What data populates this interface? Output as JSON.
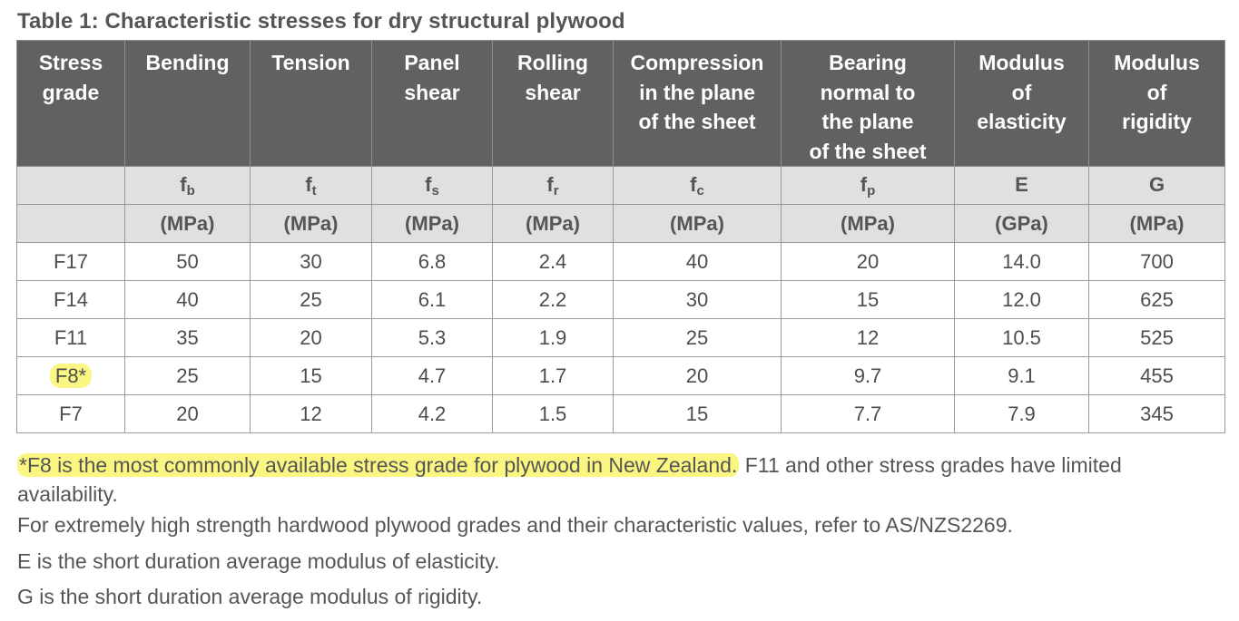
{
  "title": "Table 1: Characteristic stresses for dry structural plywood",
  "columns": [
    {
      "header": [
        "Stress",
        "grade"
      ],
      "symbol": "",
      "sub": "",
      "unit": ""
    },
    {
      "header": [
        "Bending"
      ],
      "symbol": "f",
      "sub": "b",
      "unit": "(MPa)"
    },
    {
      "header": [
        "Tension"
      ],
      "symbol": "f",
      "sub": "t",
      "unit": "(MPa)"
    },
    {
      "header": [
        "Panel",
        "shear"
      ],
      "symbol": "f",
      "sub": "s",
      "unit": "(MPa)"
    },
    {
      "header": [
        "Rolling",
        "shear"
      ],
      "symbol": "f",
      "sub": "r",
      "unit": "(MPa)"
    },
    {
      "header": [
        "Compression",
        "in the plane",
        "of the sheet"
      ],
      "symbol": "f",
      "sub": "c",
      "unit": "(MPa)"
    },
    {
      "header": [
        "Bearing",
        "normal to",
        "the plane",
        "of the sheet"
      ],
      "symbol": "f",
      "sub": "p",
      "unit": "(MPa)"
    },
    {
      "header": [
        "Modulus",
        "of",
        "elasticity"
      ],
      "symbol": "E",
      "sub": "",
      "unit": "(GPa)"
    },
    {
      "header": [
        "Modulus",
        "of",
        "rigidity"
      ],
      "symbol": "G",
      "sub": "",
      "unit": "(MPa)"
    }
  ],
  "rows": [
    {
      "grade": "F17",
      "values": [
        "50",
        "30",
        "6.8",
        "2.4",
        "40",
        "20",
        "14.0",
        "700"
      ]
    },
    {
      "grade": "F14",
      "values": [
        "40",
        "25",
        "6.1",
        "2.2",
        "30",
        "15",
        "12.0",
        "625"
      ]
    },
    {
      "grade": "F11",
      "values": [
        "35",
        "20",
        "5.3",
        "1.9",
        "25",
        "12",
        "10.5",
        "525"
      ]
    },
    {
      "grade": "F8*",
      "values": [
        "25",
        "15",
        "4.7",
        "1.7",
        "20",
        "9.7",
        "9.1",
        "455"
      ],
      "highlighted": true
    },
    {
      "grade": "F7",
      "values": [
        "20",
        "12",
        "4.2",
        "1.5",
        "15",
        "7.7",
        "7.9",
        "345"
      ]
    }
  ],
  "notes": {
    "note1_highlighted": "*F8 is the most commonly available stress grade for plywood in New Zealand.",
    "note1_rest": " F11 and other stress grades have limited availability.",
    "note2": "For extremely high strength hardwood plywood grades and their characteristic values, refer to AS/NZS2269.",
    "note3": "E is the short duration average modulus of elasticity.",
    "note4": "G is the short duration average modulus of rigidity."
  },
  "colors": {
    "header_bg": "#616163",
    "subheader_bg": "#e0e0e2",
    "highlight": "#fbf582",
    "text": "#4d4d4d"
  }
}
